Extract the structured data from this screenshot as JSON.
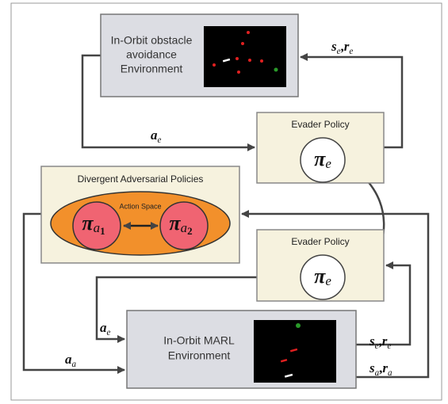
{
  "top_environment": {
    "lines": [
      "In-Orbit obstacle",
      "avoidance",
      "Environment"
    ]
  },
  "top_evader": {
    "title": "Evader Policy",
    "policy": {
      "base": "π",
      "sub": "e"
    }
  },
  "adversarial": {
    "title": "Divergent Adversarial Policies",
    "action_space": "Action Space",
    "policies": [
      {
        "base": "π",
        "sub": "a",
        "subsub": "1"
      },
      {
        "base": "π",
        "sub": "a",
        "subsub": "2"
      }
    ]
  },
  "bottom_evader": {
    "title": "Evader Policy",
    "policy": {
      "base": "π",
      "sub": "e"
    }
  },
  "marl_environment": {
    "lines": [
      "In-Orbit MARL",
      "Environment"
    ]
  },
  "edge_labels": {
    "top_state": {
      "parts": [
        {
          "base": "s",
          "sub": "e"
        },
        {
          "base": "r",
          "sub": "e"
        }
      ],
      "separator": ","
    },
    "top_action": {
      "parts": [
        {
          "base": "a",
          "sub": "e"
        }
      ]
    },
    "evader_action": {
      "parts": [
        {
          "base": "a",
          "sub": "e"
        }
      ]
    },
    "adversary_action": {
      "parts": [
        {
          "base": "a",
          "sub": "a"
        }
      ]
    },
    "marl_evader_state": {
      "parts": [
        {
          "base": "s",
          "sub": "e"
        },
        {
          "base": "r",
          "sub": "e"
        }
      ],
      "separator": ","
    },
    "marl_adversary_state": {
      "parts": [
        {
          "base": "s",
          "sub": "a"
        },
        {
          "base": "r",
          "sub": "a"
        }
      ],
      "separator": ","
    }
  }
}
